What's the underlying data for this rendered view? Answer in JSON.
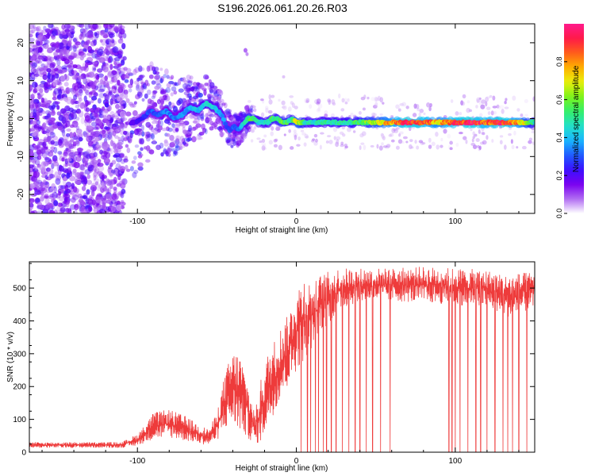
{
  "title": "S196.2026.061.20.26.R03",
  "colors": {
    "line": "#ee3b3b",
    "axis": "#000000",
    "colormap": [
      "#ffffff",
      "#b06cf2",
      "#7a00f0",
      "#3a10ff",
      "#1f5cff",
      "#19b7ff",
      "#23e0c8",
      "#34f06a",
      "#7cf21a",
      "#e8f00c",
      "#ffb000",
      "#ff5d1a",
      "#ff1a48",
      "#ff1a8c"
    ]
  },
  "chart_data": [
    {
      "type": "heatmap",
      "xlabel": "Height of straight line (km)",
      "ylabel": "Frequency (Hz)",
      "xlim": [
        -168,
        150
      ],
      "ylim": [
        -25,
        25
      ],
      "xticks": [
        -100,
        0,
        100
      ],
      "xtick_labels": [
        "-100",
        "0",
        "100"
      ],
      "yticks": [
        -20,
        -10,
        0,
        10,
        20
      ],
      "ytick_labels": [
        "-20",
        "-10",
        "0",
        "10",
        "20"
      ],
      "colorbar": {
        "label": "Normalized spectral amplitude",
        "range": [
          0,
          1
        ],
        "ticks": [
          0.0,
          0.2,
          0.4,
          0.6,
          0.8
        ],
        "tick_labels": [
          "0.0",
          "0.2",
          "0.4",
          "0.6",
          "0.8"
        ]
      },
      "ridge": {
        "x": [
          -102,
          -97,
          -92,
          -87,
          -82,
          -77,
          -72,
          -67,
          -62,
          -57,
          -52,
          -47,
          -44,
          -42,
          -39,
          -36,
          -33,
          -30,
          -27,
          -24,
          -21,
          -18,
          -15,
          -12,
          -9,
          -6,
          -3,
          0,
          3,
          6,
          10,
          20,
          30,
          40,
          50,
          60,
          70,
          80,
          90,
          95,
          100,
          110,
          120,
          130,
          140,
          150
        ],
        "y": [
          -1,
          0,
          2,
          1,
          2,
          0,
          1,
          3,
          2,
          4,
          3,
          1,
          -2,
          -3,
          -2,
          -3,
          -1,
          0,
          0,
          -1,
          -1,
          -1,
          0,
          0,
          -1,
          -1,
          0,
          -1,
          -1,
          -1,
          -1,
          -1,
          -1,
          -1,
          -1,
          -1,
          -1,
          -1,
          -1,
          -1,
          -1,
          -1,
          -1,
          -1,
          -1,
          -1
        ],
        "amplitude": [
          0.2,
          0.25,
          0.3,
          0.3,
          0.35,
          0.35,
          0.35,
          0.4,
          0.4,
          0.45,
          0.45,
          0.4,
          0.3,
          0.3,
          0.3,
          0.35,
          0.45,
          0.6,
          0.55,
          0.45,
          0.5,
          0.45,
          0.55,
          0.5,
          0.6,
          0.55,
          0.5,
          0.75,
          0.6,
          0.5,
          0.45,
          0.5,
          0.5,
          0.55,
          0.65,
          0.8,
          0.95,
          0.9,
          0.75,
          0.85,
          0.9,
          0.95,
          0.85,
          0.95,
          0.8,
          0.5
        ]
      }
    },
    {
      "type": "line",
      "xlabel": "Height of straight line (km)",
      "ylabel": "SNR (10 * v/v)",
      "xlim": [
        -168,
        150
      ],
      "ylim": [
        0,
        580
      ],
      "xticks": [
        -100,
        0,
        100
      ],
      "xtick_labels": [
        "-100",
        "0",
        "100"
      ],
      "yticks": [
        0,
        100,
        200,
        300,
        400,
        500
      ],
      "ytick_labels": [
        "0",
        "100",
        "200",
        "300",
        "400",
        "500"
      ],
      "series": [
        {
          "name": "SNR",
          "envelope_x": [
            -168,
            -110,
            -100,
            -95,
            -90,
            -80,
            -70,
            -60,
            -55,
            -50,
            -45,
            -40,
            -35,
            -30,
            -26,
            -22,
            -18,
            -14,
            -10,
            -5,
            0,
            5,
            10,
            15,
            20,
            25,
            30,
            40,
            60,
            80,
            100,
            120,
            130,
            135,
            140,
            150
          ],
          "envelope_low": [
            14,
            14,
            20,
            30,
            40,
            45,
            35,
            25,
            22,
            35,
            70,
            80,
            60,
            40,
            25,
            30,
            80,
            120,
            160,
            200,
            250,
            280,
            320,
            370,
            390,
            420,
            440,
            460,
            460,
            455,
            450,
            440,
            420,
            410,
            420,
            440
          ],
          "envelope_high": [
            30,
            30,
            55,
            85,
            120,
            130,
            110,
            80,
            70,
            120,
            240,
            310,
            300,
            200,
            120,
            230,
            300,
            340,
            380,
            420,
            500,
            540,
            510,
            540,
            550,
            560,
            560,
            560,
            560,
            565,
            560,
            555,
            540,
            540,
            545,
            550
          ],
          "dropouts": [
            3,
            7,
            9,
            12,
            14,
            17,
            19,
            22,
            25,
            29,
            33,
            37,
            40,
            44,
            48,
            53,
            59,
            96,
            98,
            100,
            103,
            108,
            113,
            116,
            120,
            125,
            130,
            133,
            136,
            140,
            145
          ]
        }
      ]
    }
  ]
}
